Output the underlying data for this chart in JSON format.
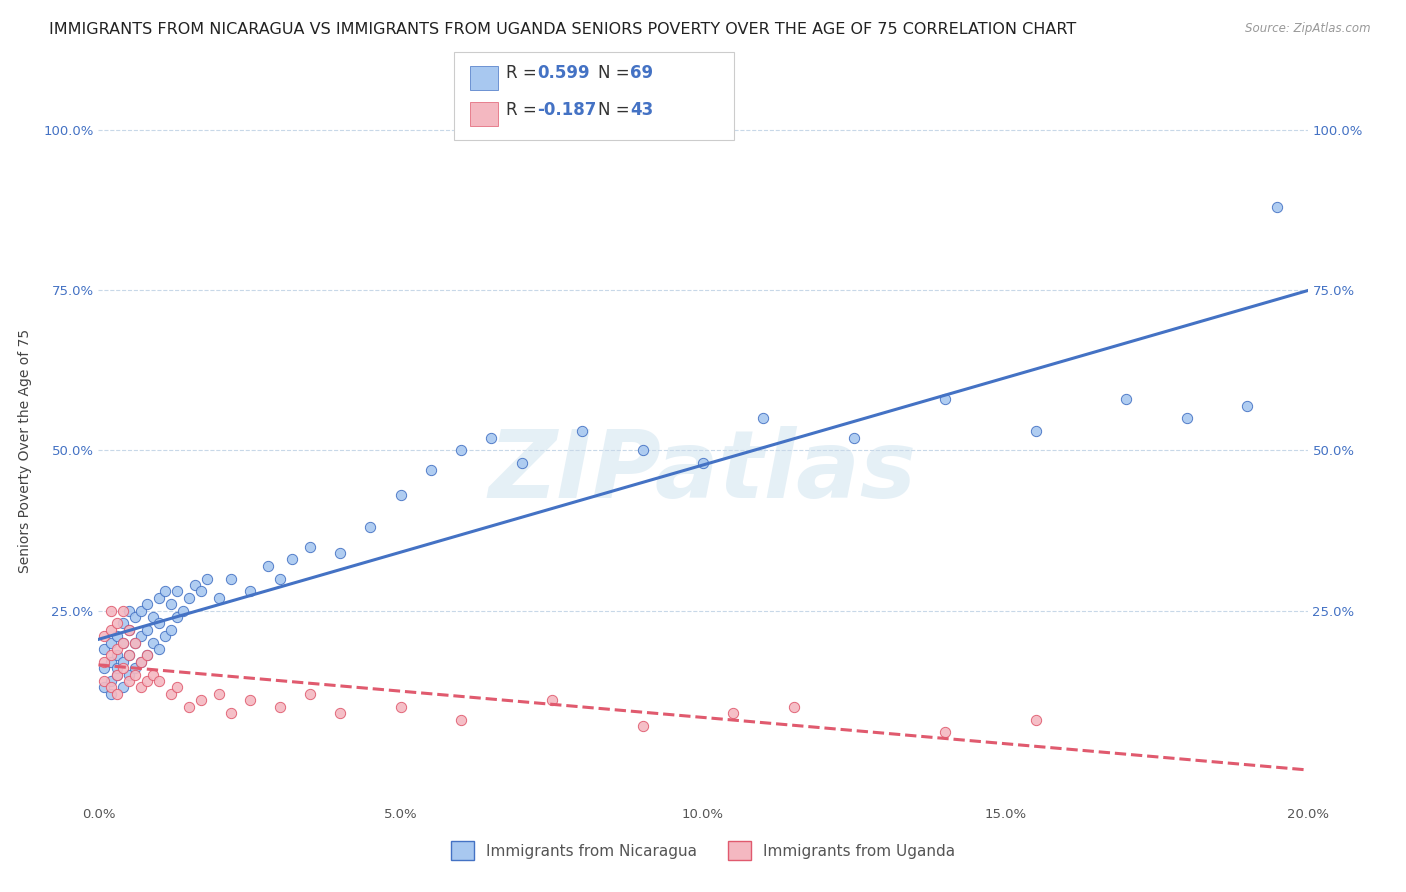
{
  "title": "IMMIGRANTS FROM NICARAGUA VS IMMIGRANTS FROM UGANDA SENIORS POVERTY OVER THE AGE OF 75 CORRELATION CHART",
  "source": "Source: ZipAtlas.com",
  "ylabel": "Seniors Poverty Over the Age of 75",
  "legend_label1": "Immigrants from Nicaragua",
  "legend_label2": "Immigrants from Uganda",
  "R1": 0.599,
  "N1": 69,
  "R2": -0.187,
  "N2": 43,
  "color_nicaragua": "#a8c8f0",
  "color_nicaragua_line": "#4472c4",
  "color_uganda": "#f4b8c1",
  "color_uganda_line": "#e05a6e",
  "background_color": "#ffffff",
  "grid_color": "#c8d8e8",
  "xlim": [
    0.0,
    0.2
  ],
  "ylim": [
    -0.05,
    1.05
  ],
  "ylim_display": [
    0.0,
    1.0
  ],
  "xticks": [
    0.0,
    0.05,
    0.1,
    0.15,
    0.2
  ],
  "yticks": [
    0.0,
    0.25,
    0.5,
    0.75,
    1.0
  ],
  "xtick_labels": [
    "0.0%",
    "5.0%",
    "10.0%",
    "15.0%",
    "20.0%"
  ],
  "ytick_labels": [
    "",
    "25.0%",
    "50.0%",
    "75.0%",
    "100.0%"
  ],
  "nicaragua_x": [
    0.001,
    0.001,
    0.001,
    0.002,
    0.002,
    0.002,
    0.002,
    0.003,
    0.003,
    0.003,
    0.003,
    0.004,
    0.004,
    0.004,
    0.004,
    0.005,
    0.005,
    0.005,
    0.005,
    0.006,
    0.006,
    0.006,
    0.007,
    0.007,
    0.007,
    0.008,
    0.008,
    0.008,
    0.009,
    0.009,
    0.01,
    0.01,
    0.01,
    0.011,
    0.011,
    0.012,
    0.012,
    0.013,
    0.013,
    0.014,
    0.015,
    0.016,
    0.017,
    0.018,
    0.02,
    0.022,
    0.025,
    0.028,
    0.03,
    0.032,
    0.035,
    0.04,
    0.045,
    0.05,
    0.055,
    0.06,
    0.065,
    0.07,
    0.08,
    0.09,
    0.1,
    0.11,
    0.125,
    0.14,
    0.155,
    0.17,
    0.18,
    0.19,
    0.195
  ],
  "nicaragua_y": [
    0.13,
    0.16,
    0.19,
    0.14,
    0.17,
    0.2,
    0.12,
    0.15,
    0.18,
    0.21,
    0.16,
    0.13,
    0.17,
    0.2,
    0.23,
    0.15,
    0.18,
    0.22,
    0.25,
    0.16,
    0.2,
    0.24,
    0.17,
    0.21,
    0.25,
    0.18,
    0.22,
    0.26,
    0.2,
    0.24,
    0.19,
    0.23,
    0.27,
    0.21,
    0.28,
    0.22,
    0.26,
    0.24,
    0.28,
    0.25,
    0.27,
    0.29,
    0.28,
    0.3,
    0.27,
    0.3,
    0.28,
    0.32,
    0.3,
    0.33,
    0.35,
    0.34,
    0.38,
    0.43,
    0.47,
    0.5,
    0.52,
    0.48,
    0.53,
    0.5,
    0.48,
    0.55,
    0.52,
    0.58,
    0.53,
    0.58,
    0.55,
    0.57,
    0.88
  ],
  "uganda_x": [
    0.001,
    0.001,
    0.001,
    0.002,
    0.002,
    0.002,
    0.002,
    0.003,
    0.003,
    0.003,
    0.003,
    0.004,
    0.004,
    0.004,
    0.005,
    0.005,
    0.005,
    0.006,
    0.006,
    0.007,
    0.007,
    0.008,
    0.008,
    0.009,
    0.01,
    0.012,
    0.013,
    0.015,
    0.017,
    0.02,
    0.022,
    0.025,
    0.03,
    0.035,
    0.04,
    0.05,
    0.06,
    0.075,
    0.09,
    0.105,
    0.115,
    0.14,
    0.155
  ],
  "uganda_y": [
    0.14,
    0.17,
    0.21,
    0.13,
    0.18,
    0.22,
    0.25,
    0.15,
    0.19,
    0.23,
    0.12,
    0.16,
    0.2,
    0.25,
    0.14,
    0.18,
    0.22,
    0.15,
    0.2,
    0.13,
    0.17,
    0.14,
    0.18,
    0.15,
    0.14,
    0.12,
    0.13,
    0.1,
    0.11,
    0.12,
    0.09,
    0.11,
    0.1,
    0.12,
    0.09,
    0.1,
    0.08,
    0.11,
    0.07,
    0.09,
    0.1,
    0.06,
    0.08
  ],
  "watermark_text": "ZIPatlas",
  "title_fontsize": 11.5,
  "tick_fontsize": 9.5,
  "legend_fontsize": 11,
  "ylabel_fontsize": 10
}
